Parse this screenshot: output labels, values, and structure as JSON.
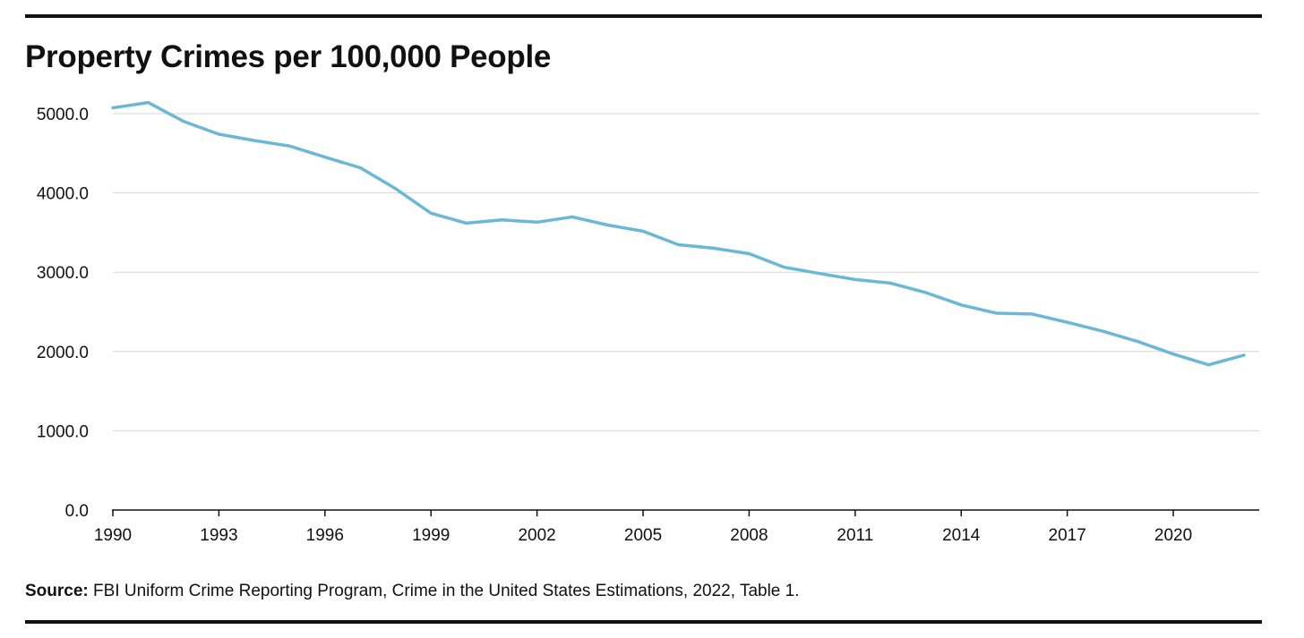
{
  "title": "Property Crimes per 100,000 People",
  "source": {
    "label": "Source:",
    "text": " FBI Uniform Crime Reporting Program, Crime in the United States Estimations, 2022, Table 1."
  },
  "colors": {
    "line": "#6bb8d6",
    "grid": "#d6d6d6",
    "axis": "#111111",
    "rule": "#111111"
  },
  "chart_data": {
    "type": "line",
    "title": "Property Crimes per 100,000 People",
    "xlabel": "",
    "ylabel": "",
    "xlim": [
      1990,
      2022
    ],
    "ylim": [
      0,
      5000
    ],
    "x_ticks": [
      "1990",
      "1993",
      "1996",
      "1999",
      "2002",
      "2005",
      "2008",
      "2011",
      "2014",
      "2017",
      "2020"
    ],
    "y_ticks": [
      "0.0",
      "1000.0",
      "2000.0",
      "3000.0",
      "4000.0",
      "5000.0"
    ],
    "grid": "horizontal",
    "legend": "none",
    "series": [
      {
        "x": [
          1990,
          1991,
          1992,
          1993,
          1994,
          1995,
          1996,
          1997,
          1998,
          1999,
          2000,
          2001,
          2002,
          2003,
          2004,
          2005,
          2006,
          2007,
          2008,
          2009,
          2010,
          2011,
          2012,
          2013,
          2014,
          2015,
          2016,
          2017,
          2018,
          2019,
          2020,
          2021,
          2022
        ],
        "values": [
          5073,
          5140,
          4903,
          4740,
          4661,
          4591,
          4451,
          4317,
          4053,
          3744,
          3618,
          3659,
          3631,
          3698,
          3595,
          3517,
          3347,
          3302,
          3234,
          3062,
          2983,
          2908,
          2862,
          2743,
          2587,
          2483,
          2473,
          2368,
          2256,
          2125,
          1967,
          1832,
          1954
        ]
      }
    ]
  }
}
